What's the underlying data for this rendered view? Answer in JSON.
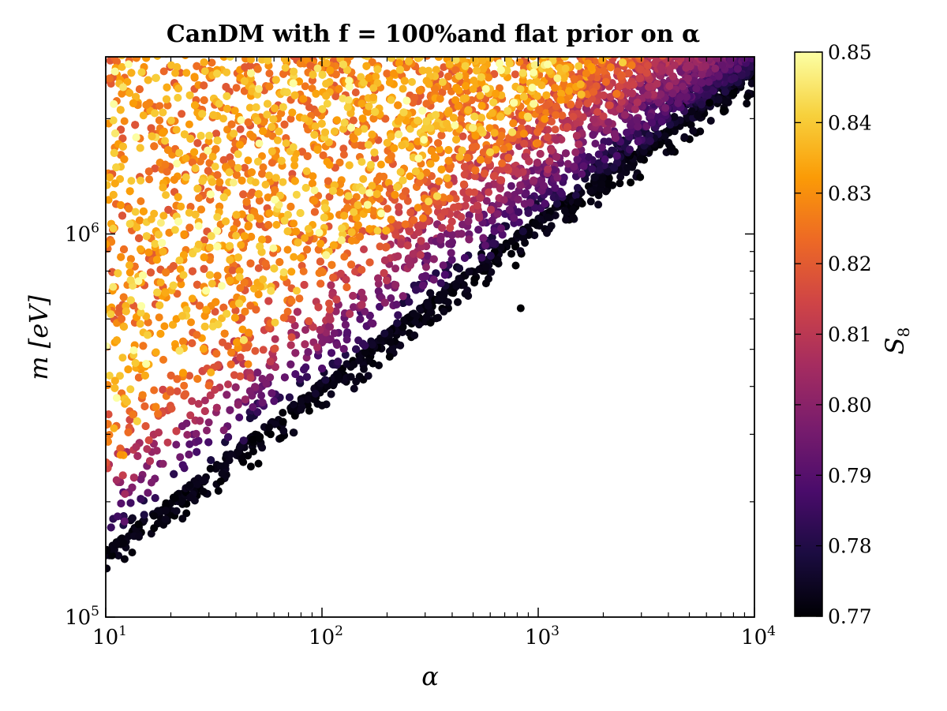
{
  "chart_data": {
    "type": "scatter",
    "title": "CanDM with f = 100%and flat prior on α",
    "xlabel": "α",
    "ylabel": "m [eV]",
    "xscale": "log",
    "yscale": "log",
    "xlim": [
      10,
      10000
    ],
    "ylim": [
      100000,
      2900000
    ],
    "xticks": [
      {
        "value": 10,
        "base": "10",
        "exp": "1"
      },
      {
        "value": 100,
        "base": "10",
        "exp": "2"
      },
      {
        "value": 1000,
        "base": "10",
        "exp": "3"
      },
      {
        "value": 10000,
        "base": "10",
        "exp": "4"
      }
    ],
    "yticks": [
      {
        "value": 100000,
        "base": "10",
        "exp": "5"
      },
      {
        "value": 1000000,
        "base": "10",
        "exp": "6"
      }
    ],
    "colorbar": {
      "label": "S8",
      "label_base": "S",
      "label_sub": "8",
      "range": [
        0.77,
        0.85
      ],
      "ticks": [
        "0.77",
        "0.78",
        "0.79",
        "0.80",
        "0.81",
        "0.82",
        "0.83",
        "0.84",
        "0.85"
      ],
      "colormap": "inferno",
      "colors": [
        "#000004",
        "#1b0c41",
        "#4a0c6b",
        "#781c6d",
        "#a52c60",
        "#cf4446",
        "#ed6925",
        "#fb9b06",
        "#f7d13d",
        "#fcffa4"
      ]
    },
    "region": {
      "description_points": "points fill region above boundary log10(m) ≈ 5.17 + 0.435·(log10(α) − 1), colour increasing with distance from boundary",
      "boundary_points": [
        {
          "alpha": 10,
          "m": 150000
        },
        {
          "alpha": 100,
          "m": 410000
        },
        {
          "alpha": 1000,
          "m": 1100000
        },
        {
          "alpha": 10000,
          "m": 2700000
        }
      ],
      "s8_edge": 0.77,
      "s8_interior": 0.83
    },
    "outliers": [
      {
        "alpha": 830,
        "m": 640000,
        "s8": 0.77
      },
      {
        "alpha": 6200,
        "m": 2200000,
        "s8": 0.77
      },
      {
        "alpha": 7200,
        "m": 2100000,
        "s8": 0.77
      }
    ]
  }
}
